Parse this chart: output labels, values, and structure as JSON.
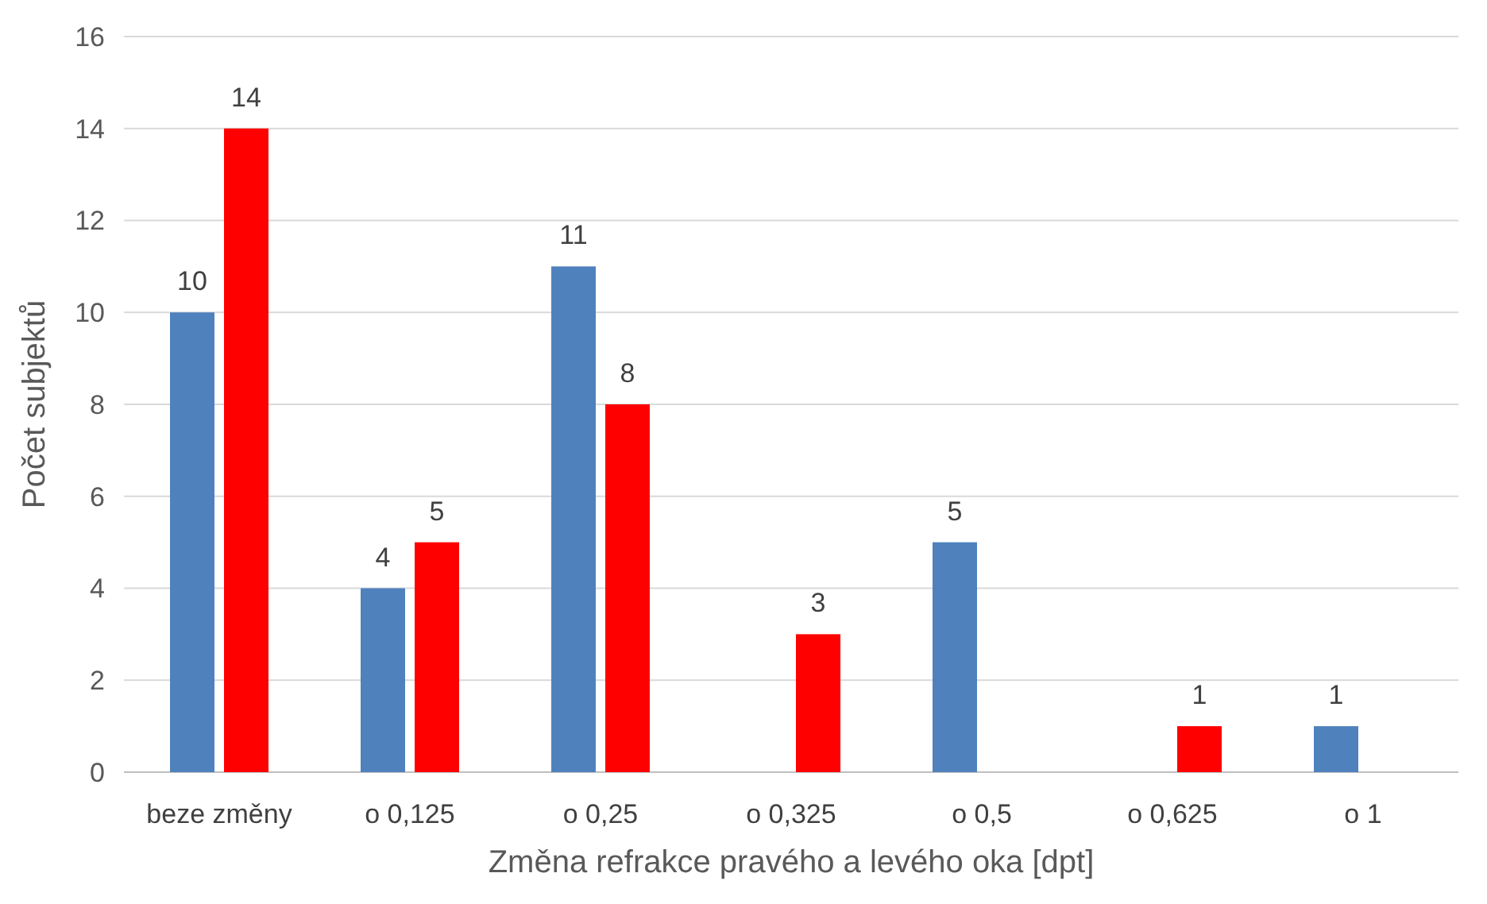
{
  "chart_data": {
    "type": "bar",
    "xlabel": "Změna refrakce pravého a levého oka [dpt]",
    "ylabel": "Počet subjektů",
    "categories": [
      "beze změny",
      "o 0,125",
      "o 0,25",
      "o 0,325",
      "o 0,5",
      "o 0,625",
      "o 1"
    ],
    "series": [
      {
        "color": "#4f81bd",
        "values": [
          10,
          4,
          11,
          null,
          5,
          null,
          1
        ]
      },
      {
        "color": "#ff0000",
        "values": [
          14,
          5,
          8,
          3,
          null,
          1,
          null
        ]
      }
    ],
    "ylim": [
      0,
      16
    ],
    "yticks": [
      0,
      2,
      4,
      6,
      8,
      10,
      12,
      14,
      16
    ],
    "grid": "y",
    "data_labels": true
  }
}
